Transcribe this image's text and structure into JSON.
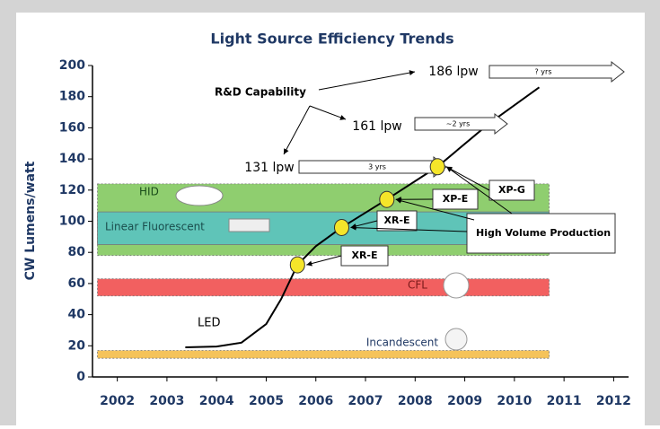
{
  "chart_data": {
    "type": "line",
    "title": "Light Source Efficiency Trends",
    "y_label": "CW Lumens/watt",
    "xlim": [
      2001.5,
      2012.3
    ],
    "xticks": [
      2002,
      2003,
      2004,
      2005,
      2006,
      2007,
      2008,
      2009,
      2010,
      2011,
      2012
    ],
    "ylim": [
      0,
      200
    ],
    "yticks": [
      0,
      20,
      40,
      60,
      80,
      100,
      120,
      140,
      160,
      180,
      200
    ],
    "bands": [
      {
        "name": "HID",
        "color": "#8fce6f",
        "range": [
          78,
          124
        ]
      },
      {
        "name": "Linear Fluorescent",
        "color": "#5fc4b8",
        "range": [
          85,
          106
        ]
      },
      {
        "name": "CFL",
        "color": "#f26060",
        "range": [
          52,
          63
        ]
      },
      {
        "name": "Incandescent",
        "color": "#f5c35a",
        "range": [
          12,
          17
        ]
      }
    ],
    "band_x": [
      2001.6,
      2010.7
    ],
    "series": [
      {
        "name": "LED",
        "color": "#000000",
        "x": [
          2003.37,
          2004,
          2004.5,
          2005,
          2005.3,
          2005.63,
          2006,
          2006.52,
          2007.43,
          2008.45,
          2009.5,
          2010.5
        ],
        "values": [
          19,
          19.5,
          22,
          34,
          50,
          72,
          84,
          96,
          114,
          135,
          163,
          186
        ]
      }
    ],
    "points": {
      "color": "#f5e52a",
      "x": [
        2005.63,
        2006.52,
        2007.43,
        2008.45
      ],
      "values": [
        72,
        96,
        114,
        135
      ],
      "labels": [
        "XR-E",
        "XR-E",
        "XP-E",
        "XP-G"
      ]
    },
    "annotations": [
      "R&D Capability",
      "186 lpw",
      "? yrs",
      "161 lpw",
      "~2 yrs",
      "131 lpw",
      "3 yrs",
      "High Volume Production"
    ]
  }
}
